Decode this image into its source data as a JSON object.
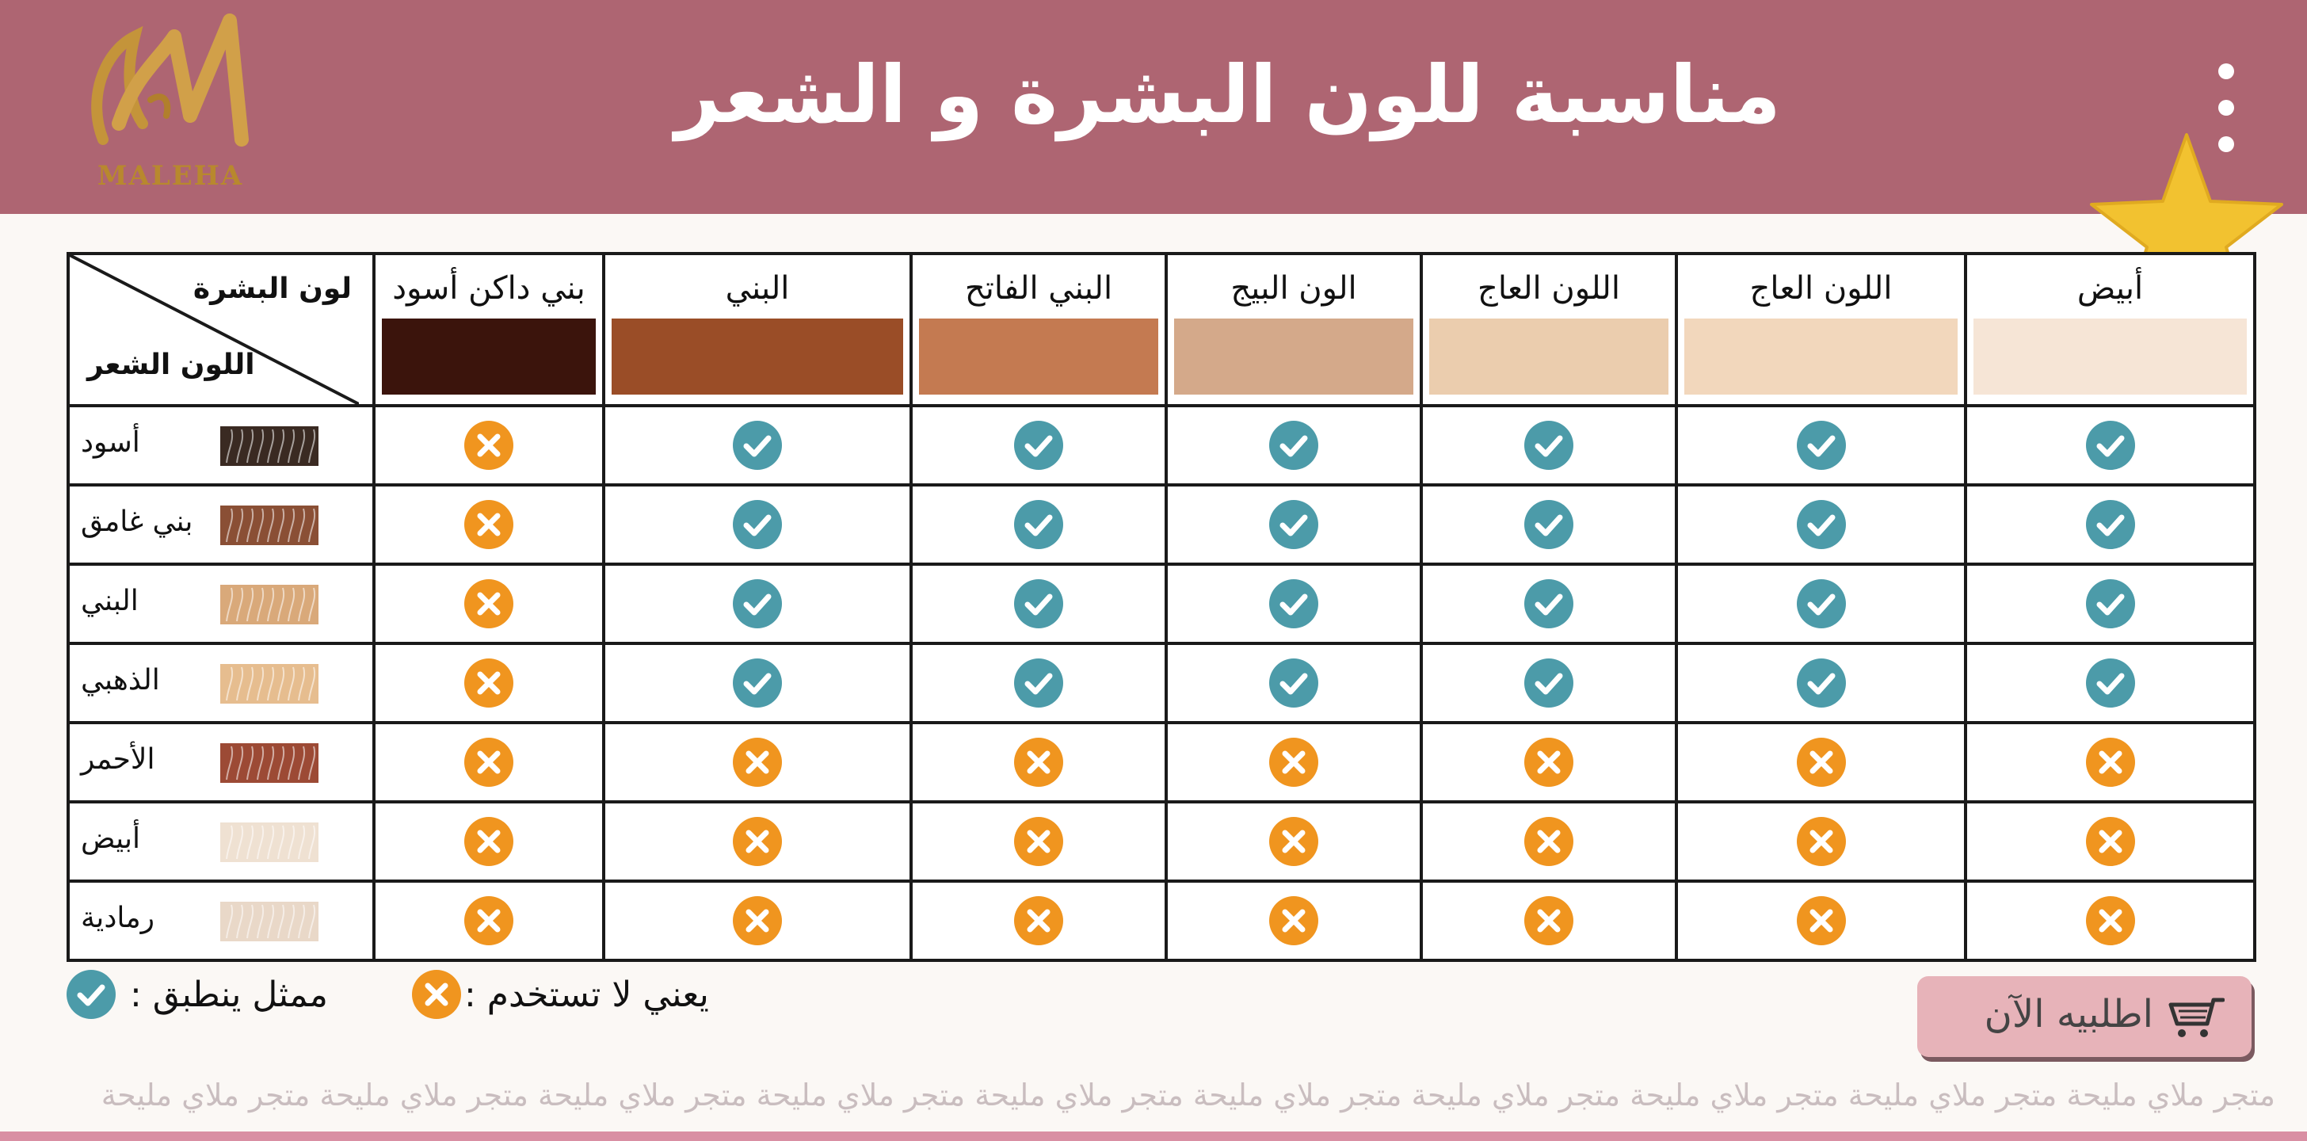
{
  "header": {
    "title": "مناسبة للون البشرة و الشعر",
    "logo_text": "MALEHA",
    "background_color": "#ae6572",
    "logo_color": "#c4943a",
    "badge_icon": "star-icon",
    "menu_icon": "kebab-menu-icon"
  },
  "table": {
    "corner_skin_label": "لون البشرة",
    "corner_hair_label": "اللون الشعر",
    "skin_tones": [
      {
        "label": "أبيض",
        "color": "#f6e5d6"
      },
      {
        "label": "اللون العاج",
        "color": "#f2d7bc"
      },
      {
        "label": "اللون العاج",
        "color": "#ebcdae"
      },
      {
        "label": "الون البيج",
        "color": "#d4a98a"
      },
      {
        "label": "البني الفاتح",
        "color": "#c47a51"
      },
      {
        "label": "البني",
        "color": "#9a4d27"
      },
      {
        "label": "بني داكن أسود",
        "color": "#3b140c"
      }
    ],
    "hair_colors": [
      {
        "label": "أسود",
        "color": "#3a2a22",
        "suitable": [
          true,
          true,
          true,
          true,
          true,
          true,
          false
        ]
      },
      {
        "label": "بني غامق",
        "color": "#8a4f35",
        "suitable": [
          true,
          true,
          true,
          true,
          true,
          true,
          false
        ]
      },
      {
        "label": "البني",
        "color": "#d9a97a",
        "suitable": [
          true,
          true,
          true,
          true,
          true,
          true,
          false
        ]
      },
      {
        "label": "الذهبي",
        "color": "#e6bd8f",
        "suitable": [
          true,
          true,
          true,
          true,
          true,
          true,
          false
        ]
      },
      {
        "label": "الأحمر",
        "color": "#9c4a35",
        "suitable": [
          false,
          false,
          false,
          false,
          false,
          false,
          false
        ]
      },
      {
        "label": "أبيض",
        "color": "#efe1d2",
        "suitable": [
          false,
          false,
          false,
          false,
          false,
          false,
          false
        ]
      },
      {
        "label": "رمادية",
        "color": "#e9d8c8",
        "suitable": [
          false,
          false,
          false,
          false,
          false,
          false,
          false
        ]
      }
    ],
    "check_color": "#4c9ba9",
    "cross_color": "#f0951f"
  },
  "legend": {
    "suitable_text": "ممثل ينطبق :",
    "unsuitable_text": "يعني لا تستخدم :"
  },
  "order_button": {
    "label": "اطلبيه الآن",
    "icon": "cart-icon"
  },
  "footer": {
    "watermark": "متجر ملاي مليحة  متجر ملاي مليحة  متجر ملاي مليحة  متجر ملاي مليحة  متجر ملاي مليحة  متجر ملاي مليحة  متجر ملاي مليحة  متجر ملاي مليحة  متجر ملاي مليحة  متجر ملاي مليحة"
  }
}
